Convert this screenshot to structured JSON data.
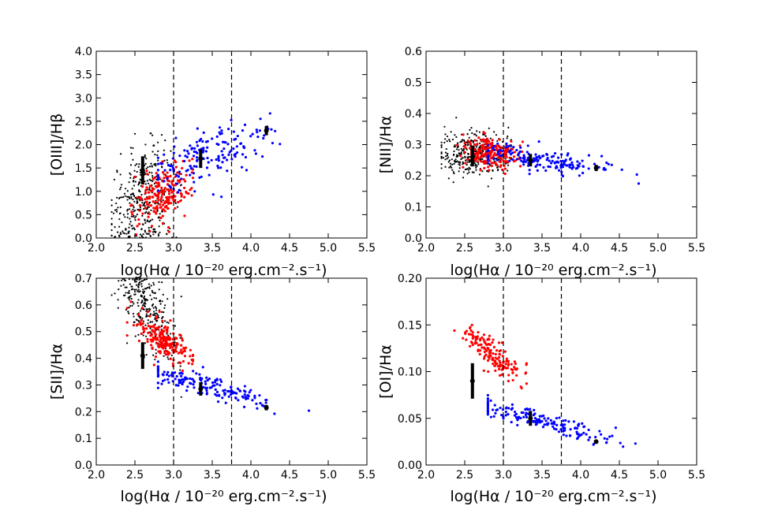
{
  "chart_data": [
    {
      "type": "scatter",
      "id": "oiii",
      "ylabel": "[OIII]/Hβ",
      "xlabel": "log(Hα / 10⁻²⁰  erg.cm⁻².s⁻¹)",
      "xlim": [
        2.0,
        5.5
      ],
      "ylim": [
        0.0,
        4.0
      ],
      "xticks": [
        "2.0",
        "2.5",
        "3.0",
        "3.5",
        "4.0",
        "4.5",
        "5.0",
        "5.5"
      ],
      "yticks": [
        "0.0",
        "0.5",
        "1.0",
        "1.5",
        "2.0",
        "2.5",
        "3.0",
        "3.5",
        "4.0"
      ],
      "vlines": [
        3.0,
        3.75
      ],
      "series": [
        {
          "name": "black",
          "color": "#000000",
          "count": 380,
          "x_range": [
            2.2,
            3.1
          ],
          "trend": [
            1.0,
            0.55
          ],
          "spread": 0.55,
          "x_mu": 2.62,
          "x_sd": 0.22
        },
        {
          "name": "red",
          "color": "#ff0000",
          "count": 200,
          "x_range": [
            2.4,
            3.25
          ],
          "trend": [
            1.05,
            0.6
          ],
          "spread": 0.3,
          "x_mu": 2.85,
          "x_sd": 0.18
        },
        {
          "name": "blue",
          "color": "#0000ff",
          "count": 170,
          "x_range": [
            2.8,
            4.75
          ],
          "trend": [
            1.55,
            0.55
          ],
          "spread": 0.3,
          "x_mu": 3.5,
          "x_sd": 0.45
        }
      ],
      "errorbars": [
        {
          "x": 2.6,
          "y": 1.45,
          "err": 0.3
        },
        {
          "x": 3.35,
          "y": 1.7,
          "err": 0.2
        },
        {
          "x": 4.2,
          "y": 2.3,
          "err": 0.1
        }
      ]
    },
    {
      "type": "scatter",
      "id": "nii",
      "ylabel": "[NII]/Hα",
      "xlabel": "log(Hα / 10⁻²⁰  erg.cm⁻².s⁻¹)",
      "xlim": [
        2.0,
        5.5
      ],
      "ylim": [
        0.0,
        0.6
      ],
      "xticks": [
        "2.0",
        "2.5",
        "3.0",
        "3.5",
        "4.0",
        "4.5",
        "5.0",
        "5.5"
      ],
      "yticks": [
        "0.0",
        "0.1",
        "0.2",
        "0.3",
        "0.4",
        "0.5",
        "0.6"
      ],
      "vlines": [
        3.0,
        3.75
      ],
      "series": [
        {
          "name": "black",
          "color": "#000000",
          "count": 380,
          "x_range": [
            2.2,
            3.1
          ],
          "trend": [
            0.27,
            -0.01
          ],
          "spread": 0.035,
          "x_mu": 2.62,
          "x_sd": 0.22
        },
        {
          "name": "red",
          "color": "#ff0000",
          "count": 200,
          "x_range": [
            2.4,
            3.25
          ],
          "trend": [
            0.27,
            -0.02
          ],
          "spread": 0.025,
          "x_mu": 2.85,
          "x_sd": 0.18
        },
        {
          "name": "blue",
          "color": "#0000ff",
          "count": 170,
          "x_range": [
            2.8,
            4.75
          ],
          "trend": [
            0.27,
            -0.04
          ],
          "spread": 0.018,
          "x_mu": 3.5,
          "x_sd": 0.45
        }
      ],
      "errorbars": [
        {
          "x": 2.6,
          "y": 0.26,
          "err": 0.03
        },
        {
          "x": 3.35,
          "y": 0.25,
          "err": 0.02
        },
        {
          "x": 4.2,
          "y": 0.225,
          "err": 0.01
        }
      ]
    },
    {
      "type": "scatter",
      "id": "sii",
      "ylabel": "[SII]/Hα",
      "xlabel": "log(Hα / 10⁻²⁰  erg.cm⁻².s⁻¹)",
      "xlim": [
        2.0,
        5.5
      ],
      "ylim": [
        0.0,
        0.7
      ],
      "xticks": [
        "2.0",
        "2.5",
        "3.0",
        "3.5",
        "4.0",
        "4.5",
        "5.0",
        "5.5"
      ],
      "yticks": [
        "0.0",
        "0.1",
        "0.2",
        "0.3",
        "0.4",
        "0.5",
        "0.6",
        "0.7"
      ],
      "vlines": [
        3.0,
        3.75
      ],
      "series": [
        {
          "name": "black",
          "color": "#000000",
          "count": 380,
          "x_range": [
            2.2,
            3.1
          ],
          "trend": [
            0.48,
            -0.35
          ],
          "spread": 0.08,
          "x_mu": 2.62,
          "x_sd": 0.22
        },
        {
          "name": "red",
          "color": "#ff0000",
          "count": 200,
          "x_range": [
            2.4,
            3.25
          ],
          "trend": [
            0.44,
            -0.2
          ],
          "spread": 0.035,
          "x_mu": 2.85,
          "x_sd": 0.18
        },
        {
          "name": "blue",
          "color": "#0000ff",
          "count": 170,
          "x_range": [
            2.8,
            4.75
          ],
          "trend": [
            0.33,
            -0.08
          ],
          "spread": 0.02,
          "x_mu": 3.5,
          "x_sd": 0.45
        }
      ],
      "errorbars": [
        {
          "x": 2.6,
          "y": 0.41,
          "err": 0.05
        },
        {
          "x": 3.35,
          "y": 0.285,
          "err": 0.025
        },
        {
          "x": 4.2,
          "y": 0.215,
          "err": 0.01
        }
      ]
    },
    {
      "type": "scatter",
      "id": "oi",
      "ylabel": "[OI]/Hα",
      "xlabel": "log(Hα / 10⁻²⁰  erg.cm⁻².s⁻¹)",
      "xlim": [
        2.0,
        5.5
      ],
      "ylim": [
        0.0,
        0.2
      ],
      "xticks": [
        "2.0",
        "2.5",
        "3.0",
        "3.5",
        "4.0",
        "4.5",
        "5.0",
        "5.5"
      ],
      "yticks": [
        "0.00",
        "0.05",
        "0.10",
        "0.15",
        "0.20"
      ],
      "vlines": [
        3.0,
        3.75
      ],
      "series": [
        {
          "name": "red",
          "color": "#ff0000",
          "count": 160,
          "x_range": [
            2.3,
            3.3
          ],
          "trend": [
            0.11,
            -0.06
          ],
          "spread": 0.009,
          "x_mu": 2.85,
          "x_sd": 0.18
        },
        {
          "name": "blue",
          "color": "#0000ff",
          "count": 170,
          "x_range": [
            2.8,
            4.75
          ],
          "trend": [
            0.058,
            -0.022
          ],
          "spread": 0.005,
          "x_mu": 3.5,
          "x_sd": 0.45
        }
      ],
      "errorbars": [
        {
          "x": 2.6,
          "y": 0.09,
          "err": 0.019
        },
        {
          "x": 3.35,
          "y": 0.05,
          "err": 0.008
        },
        {
          "x": 4.2,
          "y": 0.025,
          "err": 0.002
        }
      ]
    }
  ]
}
